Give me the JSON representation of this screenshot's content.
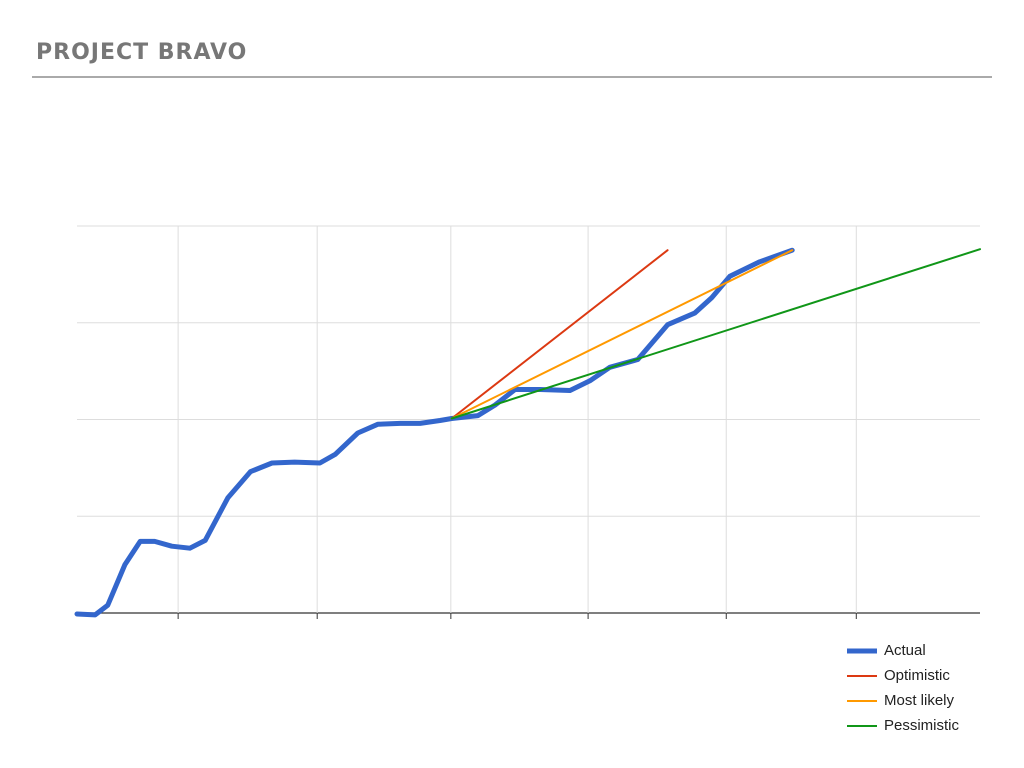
{
  "header": {
    "title": "PROJECT BRAVO"
  },
  "chart_data": {
    "type": "line",
    "xlim": [
      0,
      100
    ],
    "xticks": [
      11.2,
      26.6,
      41.4,
      56.6,
      71.9,
      86.3
    ],
    "ylim": [
      0,
      4
    ],
    "yticks": [
      0,
      1,
      2,
      3,
      4
    ],
    "grid": true,
    "legend": "bottom-right",
    "series": [
      {
        "name": "Actual",
        "color": "#3366cc",
        "x": [
          0,
          2.0,
          3.4,
          5.3,
          7.0,
          8.6,
          10.5,
          12.5,
          14.2,
          16.7,
          19.2,
          21.6,
          24.1,
          26.9,
          28.6,
          31.1,
          33.3,
          35.8,
          38.0,
          40.2,
          41.5,
          44.4,
          46.3,
          48.5,
          51.3,
          54.6,
          56.8,
          59.0,
          62.1,
          65.4,
          68.4,
          70.3,
          72.3,
          75.6,
          79.2
        ],
        "values": [
          -0.01,
          -0.02,
          0.08,
          0.5,
          0.74,
          0.74,
          0.69,
          0.67,
          0.75,
          1.19,
          1.46,
          1.55,
          1.56,
          1.55,
          1.64,
          1.86,
          1.95,
          1.96,
          1.96,
          1.99,
          2.01,
          2.04,
          2.15,
          2.31,
          2.31,
          2.3,
          2.4,
          2.54,
          2.62,
          2.98,
          3.1,
          3.26,
          3.48,
          3.63,
          3.75
        ]
      },
      {
        "name": "Optimistic",
        "color": "#dc3912",
        "x": [
          41.5,
          65.4
        ],
        "values": [
          2.01,
          3.75
        ]
      },
      {
        "name": "Most likely",
        "color": "#ff9900",
        "x": [
          41.5,
          79.2
        ],
        "values": [
          2.01,
          3.75
        ]
      },
      {
        "name": "Pessimistic",
        "color": "#109618",
        "x": [
          41.5,
          100
        ],
        "values": [
          2.01,
          3.76
        ]
      }
    ]
  }
}
